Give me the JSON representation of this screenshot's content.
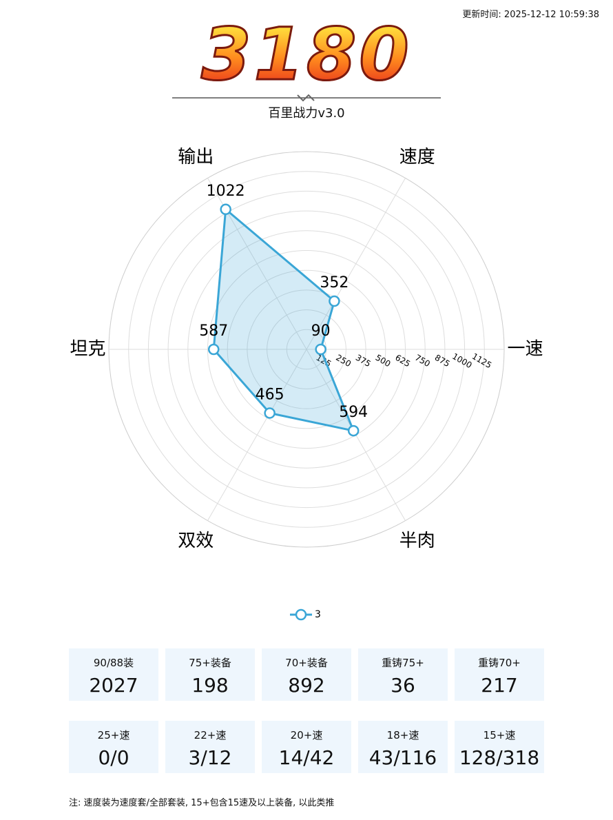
{
  "header": {
    "updated": "更新时间: 2025-12-12 10:59:38",
    "score": 3180,
    "subtitle": "百里战力v3.0"
  },
  "chart_data": {
    "type": "radar",
    "categories": [
      "一速",
      "速度",
      "输出",
      "坦克",
      "双效",
      "半肉"
    ],
    "series": [
      {
        "name": "3",
        "color": "#3aa6d6",
        "values": [
          90,
          352,
          1022,
          587,
          465,
          594
        ]
      }
    ],
    "rlim": [
      0,
      1250
    ],
    "rticks": [
      125,
      250,
      375,
      500,
      625,
      750,
      875,
      1000,
      1125
    ]
  },
  "stats": [
    [
      {
        "label": "90/88装",
        "value": 2027
      },
      {
        "label": "75+装备",
        "value": 198
      },
      {
        "label": "70+装备",
        "value": 892
      },
      {
        "label": "重铸75+",
        "value": 36
      },
      {
        "label": "重铸70+",
        "value": 217
      }
    ],
    [
      {
        "label": "25+速",
        "value": "0/0"
      },
      {
        "label": "22+速",
        "value": "3/12"
      },
      {
        "label": "20+速",
        "value": "14/42"
      },
      {
        "label": "18+速",
        "value": "43/116"
      },
      {
        "label": "15+速",
        "value": "128/318"
      }
    ]
  ],
  "note": "注: 速度装为速度套/全部套装, 15+包含15速及以上装备, 以此类推"
}
